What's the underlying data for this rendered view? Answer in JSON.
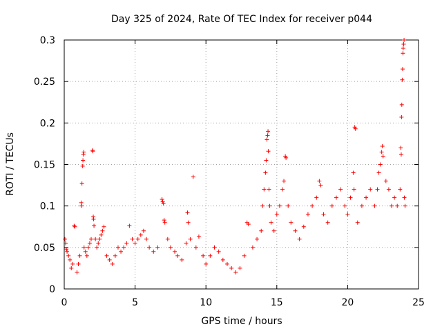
{
  "chart_data": {
    "type": "scatter",
    "title": "Day 325 of 2024, Rate Of TEC Index for receiver p044",
    "xlabel": "GPS time / hours",
    "ylabel": "ROTI / TECUs",
    "xlim": [
      0,
      25
    ],
    "ylim": [
      0,
      0.3
    ],
    "xticks": [
      0,
      5,
      10,
      15,
      20,
      25
    ],
    "yticks": [
      0,
      0.05,
      0.1,
      0.15,
      0.2,
      0.25,
      0.3
    ],
    "xtick_labels": [
      "0",
      "5",
      "10",
      "15",
      "20",
      "25"
    ],
    "ytick_labels": [
      "0",
      "0.05",
      "0.1",
      "0.15",
      "0.2",
      "0.25",
      "0.3"
    ],
    "grid": true,
    "marker": "+",
    "series_color": "#ff0000",
    "series": [
      {
        "name": "ROTI",
        "points": [
          [
            0.05,
            0.06
          ],
          [
            0.1,
            0.055
          ],
          [
            0.15,
            0.048
          ],
          [
            0.2,
            0.045
          ],
          [
            0.3,
            0.04
          ],
          [
            0.4,
            0.035
          ],
          [
            0.5,
            0.025
          ],
          [
            0.6,
            0.03
          ],
          [
            0.7,
            0.076
          ],
          [
            0.75,
            0.075
          ],
          [
            0.9,
            0.02
          ],
          [
            1.0,
            0.03
          ],
          [
            1.1,
            0.04
          ],
          [
            1.2,
            0.104
          ],
          [
            1.22,
            0.1
          ],
          [
            1.25,
            0.127
          ],
          [
            1.3,
            0.148
          ],
          [
            1.32,
            0.155
          ],
          [
            1.35,
            0.162
          ],
          [
            1.38,
            0.165
          ],
          [
            1.4,
            0.05
          ],
          [
            1.5,
            0.045
          ],
          [
            1.6,
            0.04
          ],
          [
            1.7,
            0.05
          ],
          [
            1.8,
            0.055
          ],
          [
            1.9,
            0.06
          ],
          [
            2.0,
            0.167
          ],
          [
            2.02,
            0.166
          ],
          [
            2.05,
            0.087
          ],
          [
            2.07,
            0.084
          ],
          [
            2.1,
            0.076
          ],
          [
            2.2,
            0.06
          ],
          [
            2.3,
            0.05
          ],
          [
            2.4,
            0.055
          ],
          [
            2.5,
            0.06
          ],
          [
            2.6,
            0.065
          ],
          [
            2.7,
            0.07
          ],
          [
            2.8,
            0.075
          ],
          [
            3.0,
            0.04
          ],
          [
            3.2,
            0.035
          ],
          [
            3.4,
            0.03
          ],
          [
            3.6,
            0.04
          ],
          [
            3.8,
            0.05
          ],
          [
            4.0,
            0.045
          ],
          [
            4.2,
            0.05
          ],
          [
            4.4,
            0.055
          ],
          [
            4.6,
            0.076
          ],
          [
            4.8,
            0.06
          ],
          [
            5.0,
            0.055
          ],
          [
            5.2,
            0.06
          ],
          [
            5.4,
            0.065
          ],
          [
            5.6,
            0.07
          ],
          [
            5.8,
            0.06
          ],
          [
            6.0,
            0.05
          ],
          [
            6.3,
            0.045
          ],
          [
            6.6,
            0.05
          ],
          [
            6.9,
            0.108
          ],
          [
            6.95,
            0.105
          ],
          [
            7.0,
            0.103
          ],
          [
            7.05,
            0.083
          ],
          [
            7.1,
            0.08
          ],
          [
            7.3,
            0.06
          ],
          [
            7.5,
            0.05
          ],
          [
            7.8,
            0.045
          ],
          [
            8.0,
            0.04
          ],
          [
            8.3,
            0.035
          ],
          [
            8.6,
            0.055
          ],
          [
            8.7,
            0.092
          ],
          [
            8.75,
            0.08
          ],
          [
            8.9,
            0.06
          ],
          [
            9.1,
            0.135
          ],
          [
            9.3,
            0.05
          ],
          [
            9.5,
            0.063
          ],
          [
            9.8,
            0.04
          ],
          [
            10.0,
            0.03
          ],
          [
            10.3,
            0.04
          ],
          [
            10.6,
            0.05
          ],
          [
            10.9,
            0.045
          ],
          [
            11.2,
            0.035
          ],
          [
            11.5,
            0.03
          ],
          [
            11.8,
            0.025
          ],
          [
            12.1,
            0.02
          ],
          [
            12.4,
            0.025
          ],
          [
            12.7,
            0.04
          ],
          [
            12.9,
            0.08
          ],
          [
            13.0,
            0.078
          ],
          [
            13.3,
            0.05
          ],
          [
            13.6,
            0.06
          ],
          [
            13.9,
            0.07
          ],
          [
            14.0,
            0.1
          ],
          [
            14.1,
            0.12
          ],
          [
            14.2,
            0.14
          ],
          [
            14.25,
            0.155
          ],
          [
            14.3,
            0.18
          ],
          [
            14.35,
            0.185
          ],
          [
            14.38,
            0.19
          ],
          [
            14.4,
            0.166
          ],
          [
            14.45,
            0.12
          ],
          [
            14.5,
            0.1
          ],
          [
            14.6,
            0.08
          ],
          [
            14.8,
            0.07
          ],
          [
            15.0,
            0.09
          ],
          [
            15.2,
            0.1
          ],
          [
            15.4,
            0.12
          ],
          [
            15.5,
            0.13
          ],
          [
            15.6,
            0.16
          ],
          [
            15.65,
            0.158
          ],
          [
            15.8,
            0.1
          ],
          [
            16.0,
            0.08
          ],
          [
            16.3,
            0.07
          ],
          [
            16.6,
            0.06
          ],
          [
            16.9,
            0.075
          ],
          [
            17.2,
            0.09
          ],
          [
            17.5,
            0.1
          ],
          [
            17.8,
            0.11
          ],
          [
            18.0,
            0.13
          ],
          [
            18.1,
            0.125
          ],
          [
            18.3,
            0.09
          ],
          [
            18.6,
            0.08
          ],
          [
            18.9,
            0.1
          ],
          [
            19.2,
            0.11
          ],
          [
            19.5,
            0.12
          ],
          [
            19.8,
            0.1
          ],
          [
            20.0,
            0.09
          ],
          [
            20.2,
            0.11
          ],
          [
            20.4,
            0.14
          ],
          [
            20.45,
            0.12
          ],
          [
            20.5,
            0.195
          ],
          [
            20.55,
            0.193
          ],
          [
            20.7,
            0.08
          ],
          [
            21.0,
            0.1
          ],
          [
            21.3,
            0.11
          ],
          [
            21.6,
            0.12
          ],
          [
            21.9,
            0.1
          ],
          [
            22.1,
            0.12
          ],
          [
            22.2,
            0.14
          ],
          [
            22.3,
            0.15
          ],
          [
            22.4,
            0.165
          ],
          [
            22.45,
            0.172
          ],
          [
            22.5,
            0.16
          ],
          [
            22.7,
            0.13
          ],
          [
            22.9,
            0.12
          ],
          [
            23.1,
            0.1
          ],
          [
            23.3,
            0.11
          ],
          [
            23.5,
            0.1
          ],
          [
            23.7,
            0.12
          ],
          [
            23.75,
            0.17
          ],
          [
            23.78,
            0.162
          ],
          [
            23.8,
            0.207
          ],
          [
            23.82,
            0.222
          ],
          [
            23.85,
            0.252
          ],
          [
            23.88,
            0.265
          ],
          [
            23.9,
            0.284
          ],
          [
            23.92,
            0.29
          ],
          [
            23.95,
            0.295
          ],
          [
            23.98,
            0.3
          ],
          [
            24.0,
            0.11
          ],
          [
            24.05,
            0.1
          ]
        ]
      }
    ]
  }
}
